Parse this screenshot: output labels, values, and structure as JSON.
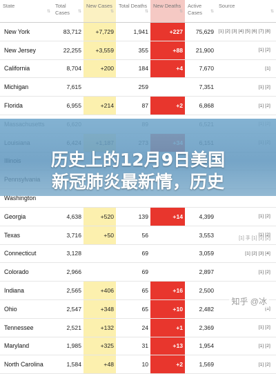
{
  "headers": [
    "State",
    "Total Cases",
    "New Cases",
    "Total Deaths",
    "New Deaths",
    "Active Cases",
    "Source"
  ],
  "rows": [
    {
      "state": "New York",
      "total_cases": "83,712",
      "new_cases": "+7,729",
      "total_deaths": "1,941",
      "new_deaths": "+227",
      "active_cases": "75,629",
      "source": "[1] [2] [3] [4] [5] [6] [7] [8]"
    },
    {
      "state": "New Jersey",
      "total_cases": "22,255",
      "new_cases": "+3,559",
      "total_deaths": "355",
      "new_deaths": "+88",
      "active_cases": "21,900",
      "source": "[1] [2]"
    },
    {
      "state": "California",
      "total_cases": "8,704",
      "new_cases": "+200",
      "total_deaths": "184",
      "new_deaths": "+4",
      "active_cases": "7,670",
      "source": "[1]"
    },
    {
      "state": "Michigan",
      "total_cases": "7,615",
      "new_cases": "",
      "total_deaths": "259",
      "new_deaths": "",
      "active_cases": "7,351",
      "source": "[1] [2]"
    },
    {
      "state": "Florida",
      "total_cases": "6,955",
      "new_cases": "+214",
      "total_deaths": "87",
      "new_deaths": "+2",
      "active_cases": "6,868",
      "source": "[1] [2]"
    },
    {
      "state": "Massachusetts",
      "total_cases": "6,620",
      "new_cases": "",
      "total_deaths": "89",
      "new_deaths": "",
      "active_cases": "6,521",
      "source": "[1] [2]"
    },
    {
      "state": "Louisiana",
      "total_cases": "6,424",
      "new_cases": "+1,187",
      "total_deaths": "273",
      "new_deaths": "+34",
      "active_cases": "6,151",
      "source": "[1] [2]"
    },
    {
      "state": "Illinois",
      "total_cases": "",
      "new_cases": "",
      "total_deaths": "",
      "new_deaths": "",
      "active_cases": "",
      "source": ""
    },
    {
      "state": "Pennsylvania",
      "total_cases": "",
      "new_cases": "",
      "total_deaths": "",
      "new_deaths": "",
      "active_cases": "",
      "source": ""
    },
    {
      "state": "Washington",
      "total_cases": "",
      "new_cases": "",
      "total_deaths": "",
      "new_deaths": "",
      "active_cases": "",
      "source": ""
    },
    {
      "state": "Georgia",
      "total_cases": "4,638",
      "new_cases": "+520",
      "total_deaths": "139",
      "new_deaths": "+14",
      "active_cases": "4,399",
      "source": "[1] [2]"
    },
    {
      "state": "Texas",
      "total_cases": "3,716",
      "new_cases": "+50",
      "total_deaths": "56",
      "new_deaths": "",
      "active_cases": "3,553",
      "source": "[1] [2]"
    },
    {
      "state": "Connecticut",
      "total_cases": "3,128",
      "new_cases": "",
      "total_deaths": "69",
      "new_deaths": "",
      "active_cases": "3,059",
      "source": "[1] [2] [3] [4]"
    },
    {
      "state": "Colorado",
      "total_cases": "2,966",
      "new_cases": "",
      "total_deaths": "69",
      "new_deaths": "",
      "active_cases": "2,897",
      "source": "[1] [2]"
    },
    {
      "state": "Indiana",
      "total_cases": "2,565",
      "new_cases": "+406",
      "total_deaths": "65",
      "new_deaths": "+16",
      "active_cases": "2,500",
      "source": ""
    },
    {
      "state": "Ohio",
      "total_cases": "2,547",
      "new_cases": "+348",
      "total_deaths": "65",
      "new_deaths": "+10",
      "active_cases": "2,482",
      "source": "[1]"
    },
    {
      "state": "Tennessee",
      "total_cases": "2,521",
      "new_cases": "+132",
      "total_deaths": "24",
      "new_deaths": "+1",
      "active_cases": "2,369",
      "source": "[1] [2]"
    },
    {
      "state": "Maryland",
      "total_cases": "1,985",
      "new_cases": "+325",
      "total_deaths": "31",
      "new_deaths": "+13",
      "active_cases": "1,954",
      "source": "[1] [2]"
    },
    {
      "state": "North Carolina",
      "total_cases": "1,584",
      "new_cases": "+48",
      "total_deaths": "10",
      "new_deaths": "+2",
      "active_cases": "1,569",
      "source": "[1] [2]"
    }
  ],
  "banner": {
    "line1": "历史上的12月9日美国",
    "line2": "新冠肺炎最新情，历史"
  },
  "watermark_a": "[1] 手 [1] [1] [2]",
  "watermark": "知乎 @冰"
}
